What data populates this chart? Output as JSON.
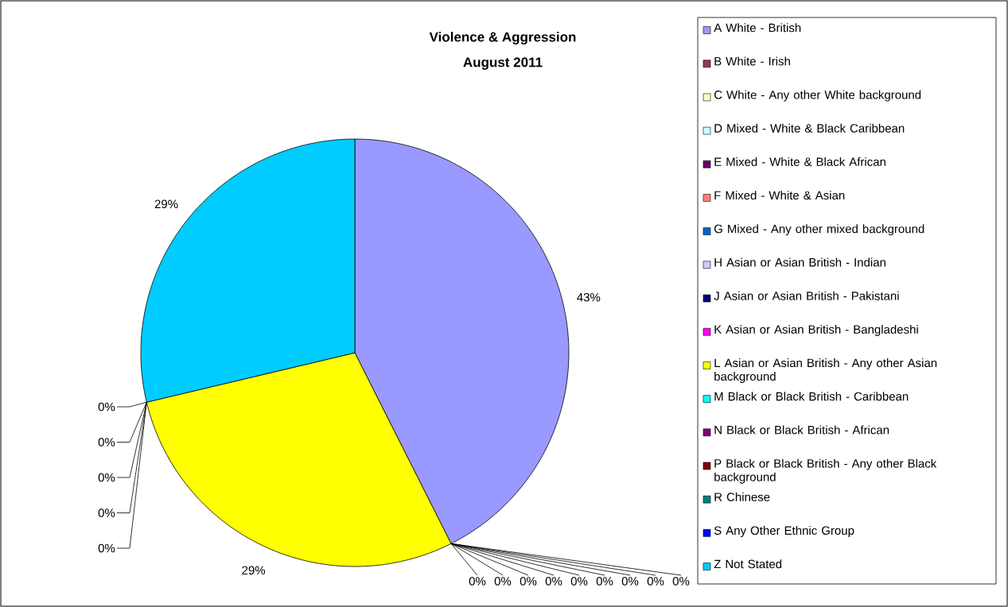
{
  "chart_data": {
    "type": "pie",
    "title": "Violence & Aggression",
    "subtitle": "August 2011",
    "categories": [
      "A White - British",
      "B White - Irish",
      "C White - Any other White background",
      "D Mixed - White & Black Caribbean",
      "E Mixed - White & Black African",
      "F Mixed - White & Asian",
      "G Mixed - Any other mixed background",
      "H Asian or Asian British - Indian",
      "J Asian or Asian British - Pakistani",
      "K Asian or Asian British - Bangladeshi",
      "L Asian or Asian British - Any other Asian background",
      "M Black or Black British - Caribbean",
      "N Black or Black British - African",
      "P Black or Black British - Any other Black background",
      "R Chinese",
      "S Any Other Ethnic Group",
      "Z Not Stated"
    ],
    "values": [
      43,
      0,
      0,
      0,
      0,
      0,
      0,
      0,
      0,
      0,
      29,
      0,
      0,
      0,
      0,
      0,
      29
    ],
    "colors": [
      "#9999ff",
      "#993366",
      "#ffffcc",
      "#ccffff",
      "#660066",
      "#ff8080",
      "#0066cc",
      "#ccccff",
      "#000080",
      "#ff00ff",
      "#ffff00",
      "#00ffff",
      "#800080",
      "#800000",
      "#008080",
      "#0000ff",
      "#00ccff"
    ],
    "value_labels": [
      "43%",
      "0%",
      "0%",
      "0%",
      "0%",
      "0%",
      "0%",
      "0%",
      "0%",
      "0%",
      "29%",
      "0%",
      "0%",
      "0%",
      "0%",
      "0%",
      "29%"
    ],
    "legend": "right"
  }
}
